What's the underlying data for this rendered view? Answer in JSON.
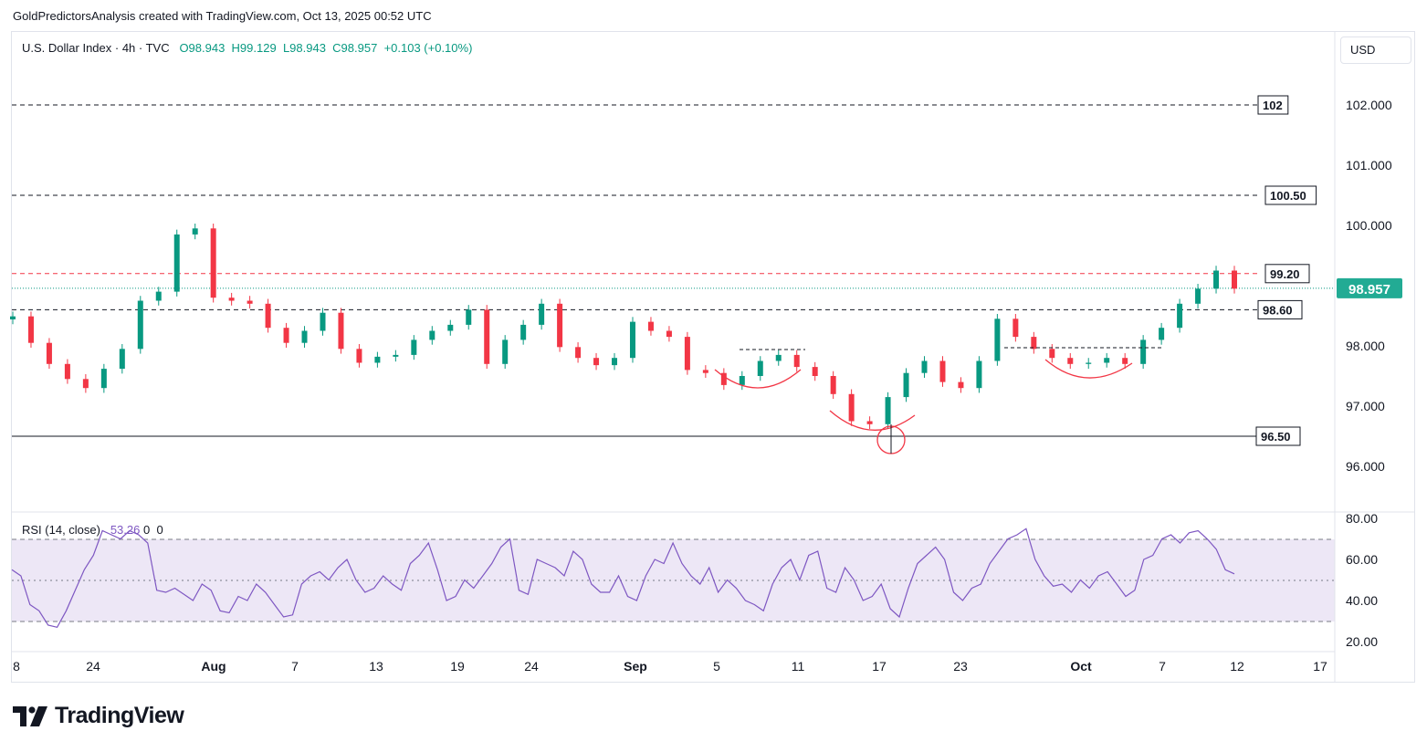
{
  "header": {
    "attribution": "GoldPredictorsAnalysis created with TradingView.com, Oct 13, 2025 00:52 UTC"
  },
  "legend": {
    "symbol": "U.S. Dollar Index · 4h · TVC",
    "open": "O98.943",
    "high": "H99.129",
    "low": "L98.943",
    "close": "C98.957",
    "change": "+0.103 (+0.10%)"
  },
  "currency_button": "USD",
  "rsi_legend": {
    "label": "RSI (14, close)",
    "value": "53.26",
    "extra1": "0",
    "extra2": "0"
  },
  "brand": {
    "name": "TradingView"
  },
  "colors": {
    "up": "#089981",
    "down": "#f23645",
    "rsi_line": "#7e57c2",
    "rsi_band": "#ede7f6",
    "current_price_bg": "#22ab94",
    "pattern": "#f23645"
  },
  "chart_data": [
    {
      "type": "candlestick",
      "title": "U.S. Dollar Index · 4h · TVC",
      "x_ticks": [
        "8",
        "24",
        "Aug",
        "7",
        "13",
        "19",
        "24",
        "Sep",
        "5",
        "11",
        "17",
        "23",
        "Oct",
        "7",
        "12",
        "17"
      ],
      "y_ticks": [
        "102.000",
        "101.000",
        "100.000",
        "98.000",
        "97.000",
        "96.000"
      ],
      "ylim": [
        95.6,
        103.0
      ],
      "current_price": "98.957",
      "series": [
        {
          "name": "close",
          "points": [
            [
              "Jul 17",
              98.49
            ],
            [
              "Jul 18",
              98.05
            ],
            [
              "Jul 20",
              97.7
            ],
            [
              "Jul 22",
              97.45
            ],
            [
              "Jul 24",
              97.3
            ],
            [
              "Jul 25",
              97.62
            ],
            [
              "Jul 27",
              97.95
            ],
            [
              "Jul 28",
              98.75
            ],
            [
              "Jul 29",
              98.9
            ],
            [
              "Jul 30",
              99.85
            ],
            [
              "Jul 31",
              99.95
            ],
            [
              "Aug 1",
              98.8
            ],
            [
              "Aug 3",
              98.75
            ],
            [
              "Aug 5",
              98.7
            ],
            [
              "Aug 6",
              98.3
            ],
            [
              "Aug 7",
              98.05
            ],
            [
              "Aug 9",
              98.25
            ],
            [
              "Aug 11",
              98.55
            ],
            [
              "Aug 12",
              97.95
            ],
            [
              "Aug 13",
              97.72
            ],
            [
              "Aug 14",
              97.82
            ],
            [
              "Aug 15",
              97.85
            ],
            [
              "Aug 17",
              98.1
            ],
            [
              "Aug 19",
              98.25
            ],
            [
              "Aug 20",
              98.35
            ],
            [
              "Aug 22",
              98.6
            ],
            [
              "Aug 22b",
              97.7
            ],
            [
              "Aug 24",
              98.1
            ],
            [
              "Aug 26",
              98.35
            ],
            [
              "Aug 27",
              98.7
            ],
            [
              "Aug 28",
              97.98
            ],
            [
              "Aug 29",
              97.8
            ],
            [
              "Aug 31",
              97.68
            ],
            [
              "Sep 1",
              97.8
            ],
            [
              "Sep 2",
              98.4
            ],
            [
              "Sep 3",
              98.25
            ],
            [
              "Sep 4",
              98.15
            ],
            [
              "Sep 5",
              97.6
            ],
            [
              "Sep 7",
              97.55
            ],
            [
              "Sep 8",
              97.35
            ],
            [
              "Sep 9",
              97.5
            ],
            [
              "Sep 10",
              97.75
            ],
            [
              "Sep 11",
              97.85
            ],
            [
              "Sep 12",
              97.65
            ],
            [
              "Sep 14",
              97.5
            ],
            [
              "Sep 15",
              97.2
            ],
            [
              "Sep 16",
              96.75
            ],
            [
              "Sep 17",
              96.7
            ],
            [
              "Sep 18",
              97.15
            ],
            [
              "Sep 19",
              97.55
            ],
            [
              "Sep 21",
              97.75
            ],
            [
              "Sep 22",
              97.4
            ],
            [
              "Sep 23",
              97.3
            ],
            [
              "Sep 24",
              97.75
            ],
            [
              "Sep 25",
              98.45
            ],
            [
              "Sep 26",
              98.15
            ],
            [
              "Sep 28",
              97.95
            ],
            [
              "Sep 29",
              97.8
            ],
            [
              "Sep 30",
              97.7
            ],
            [
              "Oct 1",
              97.72
            ],
            [
              "Oct 2",
              97.8
            ],
            [
              "Oct 3",
              97.7
            ],
            [
              "Oct 5",
              98.1
            ],
            [
              "Oct 6",
              98.3
            ],
            [
              "Oct 7",
              98.7
            ],
            [
              "Oct 8",
              98.95
            ],
            [
              "Oct 9",
              99.25
            ],
            [
              "Oct 10",
              98.95
            ]
          ]
        }
      ],
      "annotations": {
        "levels": [
          {
            "label": "102",
            "value": 102.0,
            "style": "dashed",
            "color": "#131722"
          },
          {
            "label": "100.50",
            "value": 100.5,
            "style": "dashed",
            "color": "#131722"
          },
          {
            "label": "99.20",
            "value": 99.2,
            "style": "dashed",
            "color": "#f23645"
          },
          {
            "label": "98.60",
            "value": 98.6,
            "style": "dashed",
            "color": "#131722"
          },
          {
            "label": "96.50",
            "value": 96.5,
            "style": "solid",
            "color": "#131722"
          }
        ],
        "neckline": 98.0
      }
    },
    {
      "type": "line",
      "title": "RSI (14, close)",
      "y_ticks": [
        "80.00",
        "60.00",
        "40.00",
        "20.00"
      ],
      "ylim": [
        20,
        80
      ],
      "bands": [
        30,
        50,
        70
      ],
      "series": [
        {
          "name": "RSI",
          "values": [
            55,
            52,
            38,
            35,
            28,
            27,
            35,
            45,
            55,
            62,
            74,
            72,
            70,
            74,
            72,
            68,
            45,
            44,
            46,
            43,
            40,
            48,
            45,
            35,
            34,
            42,
            40,
            48,
            44,
            38,
            32,
            33,
            48,
            52,
            54,
            50,
            56,
            60,
            50,
            44,
            46,
            52,
            48,
            45,
            58,
            62,
            68,
            55,
            40,
            42,
            50,
            46,
            52,
            58,
            66,
            70,
            45,
            43,
            60,
            58,
            56,
            52,
            64,
            60,
            48,
            44,
            44,
            52,
            42,
            40,
            52,
            60,
            58,
            68,
            58,
            52,
            48,
            56,
            44,
            50,
            46,
            40,
            38,
            35,
            48,
            56,
            60,
            50,
            62,
            64,
            46,
            44,
            56,
            50,
            40,
            42,
            48,
            36,
            32,
            46,
            58,
            62,
            66,
            60,
            44,
            40,
            46,
            48,
            58,
            64,
            70,
            72,
            75,
            60,
            52,
            47,
            48,
            44,
            50,
            46,
            52,
            54,
            48,
            42,
            45,
            60,
            62,
            70,
            72,
            68,
            73,
            74,
            70,
            65,
            55,
            53
          ]
        }
      ]
    }
  ]
}
